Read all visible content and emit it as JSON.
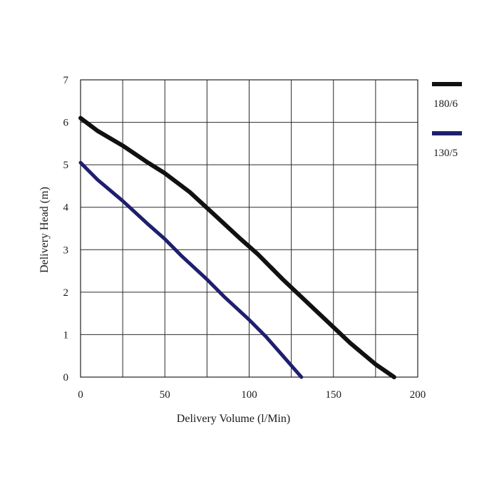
{
  "chart_data": {
    "type": "line",
    "title": "",
    "xlabel": "Delivery Volume (l/Min)",
    "ylabel": "Delivery Head (m)",
    "xlim": [
      0,
      200
    ],
    "ylim": [
      0,
      7
    ],
    "xticks": [
      0,
      50,
      100,
      150,
      200
    ],
    "yticks": [
      0,
      1,
      2,
      3,
      4,
      5,
      6,
      7
    ],
    "xgrid": [
      0,
      25,
      50,
      75,
      100,
      125,
      150,
      175,
      200
    ],
    "grid": true,
    "legend_position": "top-right",
    "series": [
      {
        "name": "180/6",
        "color": "#111111",
        "points": [
          [
            0,
            6.1
          ],
          [
            10,
            5.8
          ],
          [
            25,
            5.45
          ],
          [
            40,
            5.05
          ],
          [
            50,
            4.8
          ],
          [
            65,
            4.35
          ],
          [
            80,
            3.8
          ],
          [
            95,
            3.25
          ],
          [
            105,
            2.9
          ],
          [
            120,
            2.3
          ],
          [
            140,
            1.55
          ],
          [
            160,
            0.8
          ],
          [
            175,
            0.3
          ],
          [
            186,
            0
          ]
        ]
      },
      {
        "name": "130/5",
        "color": "#1f1f6e",
        "points": [
          [
            0,
            5.05
          ],
          [
            10,
            4.65
          ],
          [
            25,
            4.15
          ],
          [
            40,
            3.6
          ],
          [
            50,
            3.25
          ],
          [
            60,
            2.85
          ],
          [
            75,
            2.3
          ],
          [
            85,
            1.9
          ],
          [
            100,
            1.35
          ],
          [
            110,
            0.95
          ],
          [
            120,
            0.5
          ],
          [
            131,
            0
          ]
        ]
      }
    ]
  }
}
